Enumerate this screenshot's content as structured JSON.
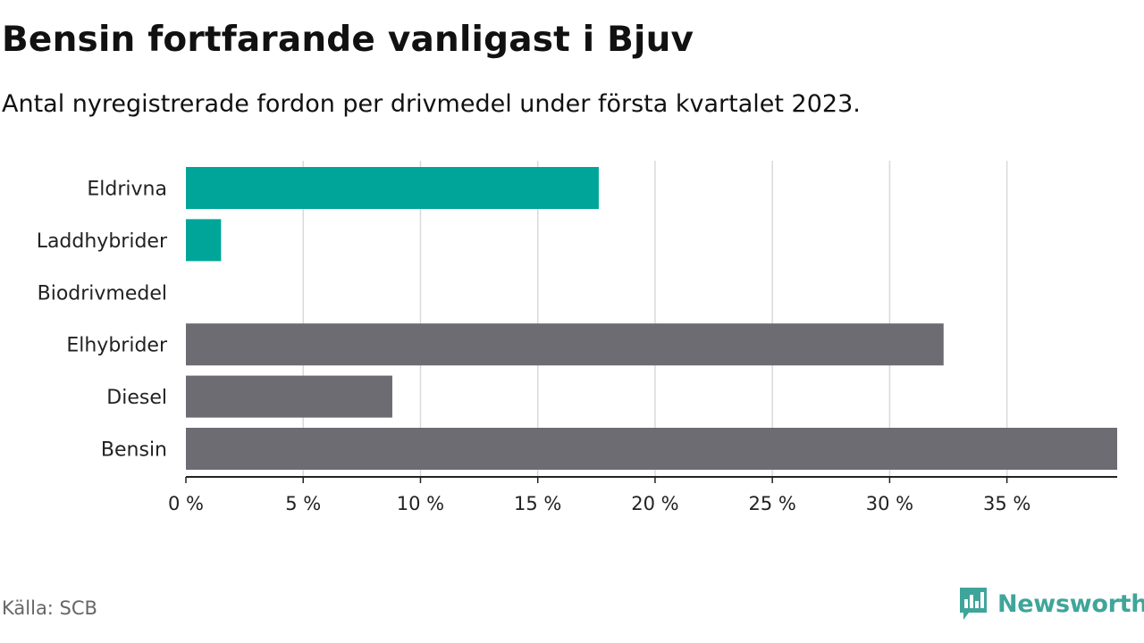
{
  "title": "Bensin fortfarande vanligast i Bjuv",
  "subtitle": "Antal nyregistrerade fordon per drivmedel under första kvartalet 2023.",
  "source": "Källa: SCB",
  "brand": {
    "name": "Newsworthy",
    "icon": "newsworthy-logo-icon",
    "color": "#3fa59a"
  },
  "colors": {
    "highlight": "#00a59a",
    "default": "#6d6c73",
    "grid": "#d9d9d9",
    "axis": "#222222"
  },
  "chart_data": {
    "type": "bar",
    "orientation": "horizontal",
    "categories": [
      "Eldrivna",
      "Laddhybrider",
      "Biodrivmedel",
      "Elhybrider",
      "Diesel",
      "Bensin"
    ],
    "values": [
      17.6,
      1.5,
      0,
      32.3,
      8.8,
      39.7
    ],
    "unit": "%",
    "highlighted": [
      "Eldrivna",
      "Laddhybrider"
    ],
    "xlim": [
      0,
      39.7
    ],
    "xticks": [
      0,
      5,
      10,
      15,
      20,
      25,
      30,
      35
    ],
    "xtick_labels": [
      "0 %",
      "5 %",
      "10 %",
      "15 %",
      "20 %",
      "25 %",
      "30 %",
      "35 %"
    ],
    "grid": true,
    "xlabel": "",
    "ylabel": ""
  }
}
